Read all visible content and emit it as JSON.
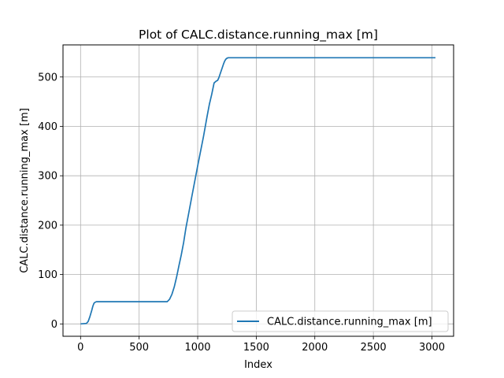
{
  "chart_data": {
    "type": "line",
    "title": "Plot of CALC.distance.running_max [m]",
    "xlabel": "Index",
    "ylabel": "CALC.distance.running_max [m]",
    "xlim": [
      -150,
      3185
    ],
    "ylim": [
      -25,
      565
    ],
    "xticks": [
      0,
      500,
      1000,
      1500,
      2000,
      2500,
      3000
    ],
    "yticks": [
      0,
      100,
      200,
      300,
      400,
      500
    ],
    "grid": true,
    "legend_position": "lower-right",
    "series_color": "#1f77b4",
    "series": [
      {
        "name": "CALC.distance.running_max [m]",
        "x": [
          0,
          50,
          65,
          80,
          95,
          105,
          115,
          125,
          135,
          150,
          200,
          300,
          400,
          500,
          600,
          700,
          740,
          760,
          780,
          800,
          820,
          840,
          860,
          880,
          900,
          920,
          950,
          1000,
          1050,
          1080,
          1100,
          1120,
          1140,
          1160,
          1170,
          1180,
          1190,
          1200,
          1210,
          1220,
          1230,
          1240,
          1250,
          1260,
          1270,
          1300,
          1500,
          2000,
          2500,
          3000,
          3030
        ],
        "y": [
          0,
          1,
          5,
          15,
          27,
          36,
          42,
          44,
          45,
          45,
          45,
          45,
          45,
          45,
          45,
          45,
          45,
          50,
          60,
          75,
          95,
          118,
          140,
          165,
          195,
          220,
          258,
          320,
          380,
          420,
          445,
          465,
          488,
          492,
          493,
          498,
          505,
          512,
          519,
          526,
          532,
          536,
          538,
          539,
          539,
          539,
          539,
          539,
          539,
          539,
          539
        ]
      }
    ]
  }
}
